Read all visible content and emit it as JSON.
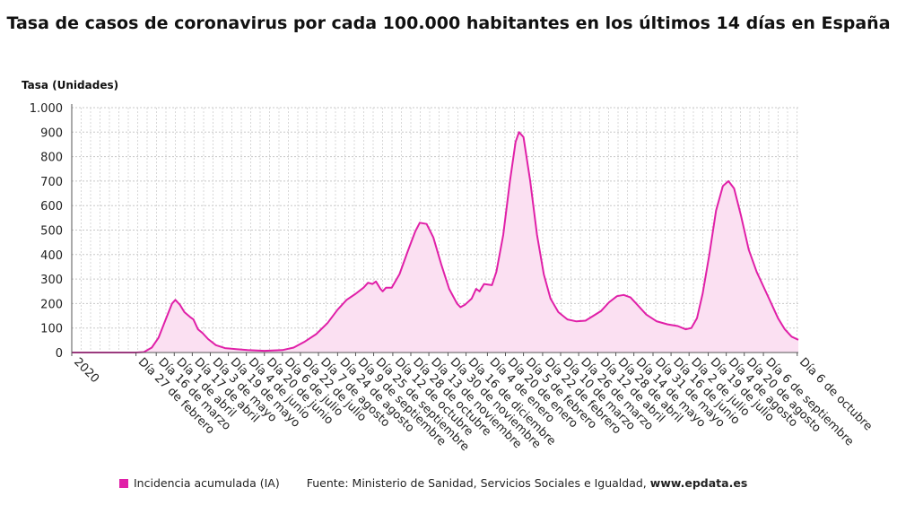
{
  "chart_data": {
    "type": "area",
    "title": "Tasa de casos de coronavirus por cada 100.000 habitantes en los últimos 14 días en España",
    "ylabel": "Tasa (Unidades)",
    "xlabel": "",
    "ylim": [
      0,
      1000
    ],
    "yticks": [
      {
        "value": 0,
        "label": "0"
      },
      {
        "value": 100,
        "label": "100"
      },
      {
        "value": 200,
        "label": "200"
      },
      {
        "value": 300,
        "label": "300"
      },
      {
        "value": 400,
        "label": "400"
      },
      {
        "value": 500,
        "label": "500"
      },
      {
        "value": 600,
        "label": "600"
      },
      {
        "value": 700,
        "label": "700"
      },
      {
        "value": 800,
        "label": "800"
      },
      {
        "value": 900,
        "label": "900"
      },
      {
        "value": 1000,
        "label": "1.000"
      }
    ],
    "xrange": [
      "2020-01-01",
      "2021-10-07"
    ],
    "xticks": [
      {
        "date": "2020-01-01",
        "label": "2020"
      },
      {
        "date": "2020-02-27",
        "label": "Día 27 de febrero"
      },
      {
        "date": "2020-03-16",
        "label": "Día 16 de marzo"
      },
      {
        "date": "2020-04-01",
        "label": "Día 1 de abril"
      },
      {
        "date": "2020-04-17",
        "label": "Día 17 de abril"
      },
      {
        "date": "2020-05-03",
        "label": "Día 3 de mayo"
      },
      {
        "date": "2020-05-19",
        "label": "Día 19 de mayo"
      },
      {
        "date": "2020-06-04",
        "label": "Día 4 de junio"
      },
      {
        "date": "2020-06-20",
        "label": "Día 20 de junio"
      },
      {
        "date": "2020-07-06",
        "label": "Día 6 de julio"
      },
      {
        "date": "2020-07-22",
        "label": "Día 22 de julio"
      },
      {
        "date": "2020-08-07",
        "label": "Día 7 de agosto"
      },
      {
        "date": "2020-08-24",
        "label": "Día 24 de agosto"
      },
      {
        "date": "2020-09-09",
        "label": "Día 9 de septiembre"
      },
      {
        "date": "2020-09-25",
        "label": "Día 25 de septiembre"
      },
      {
        "date": "2020-10-12",
        "label": "Día 12 de octubre"
      },
      {
        "date": "2020-10-28",
        "label": "Día 28 de octubre"
      },
      {
        "date": "2020-11-13",
        "label": "Día 13 de noviembre"
      },
      {
        "date": "2020-11-30",
        "label": "Día 30 de noviembre"
      },
      {
        "date": "2020-12-16",
        "label": "Día 16 de diciembre"
      },
      {
        "date": "2021-01-04",
        "label": "Día 4 de enero"
      },
      {
        "date": "2021-01-20",
        "label": "Día 20 de enero"
      },
      {
        "date": "2021-02-05",
        "label": "Día 5 de febrero"
      },
      {
        "date": "2021-02-22",
        "label": "Día 22 de febrero"
      },
      {
        "date": "2021-03-10",
        "label": "Día 10 de marzo"
      },
      {
        "date": "2021-03-26",
        "label": "Día 26 de marzo"
      },
      {
        "date": "2021-04-12",
        "label": "Día 12 de abril"
      },
      {
        "date": "2021-04-28",
        "label": "Día 28 de abril"
      },
      {
        "date": "2021-05-14",
        "label": "Día 14 de mayo"
      },
      {
        "date": "2021-05-31",
        "label": "Día 31 de mayo"
      },
      {
        "date": "2021-06-16",
        "label": "Día 16 de junio"
      },
      {
        "date": "2021-07-02",
        "label": "Día 2 de julio"
      },
      {
        "date": "2021-07-19",
        "label": "Día 19 de julio"
      },
      {
        "date": "2021-08-04",
        "label": "Día 4 de agosto"
      },
      {
        "date": "2021-08-20",
        "label": "Día 20 de agosto"
      },
      {
        "date": "2021-09-06",
        "label": "Día 6 de septiembre"
      },
      {
        "date": "2021-10-06",
        "label": "Día 6 de octubre"
      }
    ],
    "grid": true,
    "legend_position": "bottom-left",
    "series": [
      {
        "name": "Incidencia acumulada (IA)",
        "color": "#e020a8",
        "fill": "#fbe0f2",
        "points": [
          {
            "x": "2020-01-01",
            "y": 0
          },
          {
            "x": "2020-02-27",
            "y": 0
          },
          {
            "x": "2020-03-05",
            "y": 2
          },
          {
            "x": "2020-03-12",
            "y": 20
          },
          {
            "x": "2020-03-18",
            "y": 60
          },
          {
            "x": "2020-03-24",
            "y": 130
          },
          {
            "x": "2020-03-30",
            "y": 200
          },
          {
            "x": "2020-04-02",
            "y": 215
          },
          {
            "x": "2020-04-06",
            "y": 195
          },
          {
            "x": "2020-04-10",
            "y": 165
          },
          {
            "x": "2020-04-15",
            "y": 145
          },
          {
            "x": "2020-04-18",
            "y": 135
          },
          {
            "x": "2020-04-22",
            "y": 95
          },
          {
            "x": "2020-04-26",
            "y": 80
          },
          {
            "x": "2020-05-01",
            "y": 55
          },
          {
            "x": "2020-05-08",
            "y": 30
          },
          {
            "x": "2020-05-16",
            "y": 18
          },
          {
            "x": "2020-05-26",
            "y": 14
          },
          {
            "x": "2020-06-05",
            "y": 10
          },
          {
            "x": "2020-06-20",
            "y": 7
          },
          {
            "x": "2020-07-06",
            "y": 10
          },
          {
            "x": "2020-07-16",
            "y": 20
          },
          {
            "x": "2020-07-26",
            "y": 45
          },
          {
            "x": "2020-08-05",
            "y": 75
          },
          {
            "x": "2020-08-15",
            "y": 120
          },
          {
            "x": "2020-08-24",
            "y": 175
          },
          {
            "x": "2020-09-01",
            "y": 215
          },
          {
            "x": "2020-09-09",
            "y": 240
          },
          {
            "x": "2020-09-16",
            "y": 265
          },
          {
            "x": "2020-09-20",
            "y": 285
          },
          {
            "x": "2020-09-24",
            "y": 280
          },
          {
            "x": "2020-09-27",
            "y": 290
          },
          {
            "x": "2020-10-01",
            "y": 260
          },
          {
            "x": "2020-10-03",
            "y": 250
          },
          {
            "x": "2020-10-06",
            "y": 265
          },
          {
            "x": "2020-10-11",
            "y": 265
          },
          {
            "x": "2020-10-18",
            "y": 320
          },
          {
            "x": "2020-10-25",
            "y": 410
          },
          {
            "x": "2020-11-01",
            "y": 495
          },
          {
            "x": "2020-11-05",
            "y": 530
          },
          {
            "x": "2020-11-11",
            "y": 525
          },
          {
            "x": "2020-11-17",
            "y": 470
          },
          {
            "x": "2020-11-24",
            "y": 360
          },
          {
            "x": "2020-12-01",
            "y": 260
          },
          {
            "x": "2020-12-08",
            "y": 200
          },
          {
            "x": "2020-12-11",
            "y": 185
          },
          {
            "x": "2020-12-15",
            "y": 195
          },
          {
            "x": "2020-12-21",
            "y": 220
          },
          {
            "x": "2020-12-25",
            "y": 260
          },
          {
            "x": "2020-12-28",
            "y": 250
          },
          {
            "x": "2021-01-01",
            "y": 280
          },
          {
            "x": "2021-01-08",
            "y": 275
          },
          {
            "x": "2021-01-12",
            "y": 330
          },
          {
            "x": "2021-01-18",
            "y": 480
          },
          {
            "x": "2021-01-24",
            "y": 700
          },
          {
            "x": "2021-01-29",
            "y": 860
          },
          {
            "x": "2021-02-01",
            "y": 900
          },
          {
            "x": "2021-02-05",
            "y": 880
          },
          {
            "x": "2021-02-11",
            "y": 700
          },
          {
            "x": "2021-02-17",
            "y": 480
          },
          {
            "x": "2021-02-23",
            "y": 320
          },
          {
            "x": "2021-03-01",
            "y": 220
          },
          {
            "x": "2021-03-08",
            "y": 165
          },
          {
            "x": "2021-03-16",
            "y": 135
          },
          {
            "x": "2021-03-24",
            "y": 127
          },
          {
            "x": "2021-04-01",
            "y": 130
          },
          {
            "x": "2021-04-08",
            "y": 150
          },
          {
            "x": "2021-04-15",
            "y": 170
          },
          {
            "x": "2021-04-22",
            "y": 205
          },
          {
            "x": "2021-04-29",
            "y": 230
          },
          {
            "x": "2021-05-05",
            "y": 235
          },
          {
            "x": "2021-05-11",
            "y": 225
          },
          {
            "x": "2021-05-18",
            "y": 190
          },
          {
            "x": "2021-05-25",
            "y": 155
          },
          {
            "x": "2021-06-03",
            "y": 128
          },
          {
            "x": "2021-06-13",
            "y": 115
          },
          {
            "x": "2021-06-22",
            "y": 108
          },
          {
            "x": "2021-06-29",
            "y": 95
          },
          {
            "x": "2021-07-04",
            "y": 100
          },
          {
            "x": "2021-07-09",
            "y": 140
          },
          {
            "x": "2021-07-14",
            "y": 240
          },
          {
            "x": "2021-07-20",
            "y": 400
          },
          {
            "x": "2021-07-26",
            "y": 580
          },
          {
            "x": "2021-08-01",
            "y": 680
          },
          {
            "x": "2021-08-06",
            "y": 700
          },
          {
            "x": "2021-08-11",
            "y": 670
          },
          {
            "x": "2021-08-17",
            "y": 560
          },
          {
            "x": "2021-08-24",
            "y": 420
          },
          {
            "x": "2021-08-31",
            "y": 330
          },
          {
            "x": "2021-09-07",
            "y": 260
          },
          {
            "x": "2021-09-13",
            "y": 200
          },
          {
            "x": "2021-09-19",
            "y": 140
          },
          {
            "x": "2021-09-25",
            "y": 95
          },
          {
            "x": "2021-10-01",
            "y": 65
          },
          {
            "x": "2021-10-07",
            "y": 52
          }
        ]
      }
    ]
  },
  "legend": {
    "series_label": "Incidencia acumulada (IA)",
    "source_prefix": "Fuente: Ministerio de Sanidad, Servicios Sociales e Igualdad,",
    "source_site": "www.epdata.es"
  }
}
